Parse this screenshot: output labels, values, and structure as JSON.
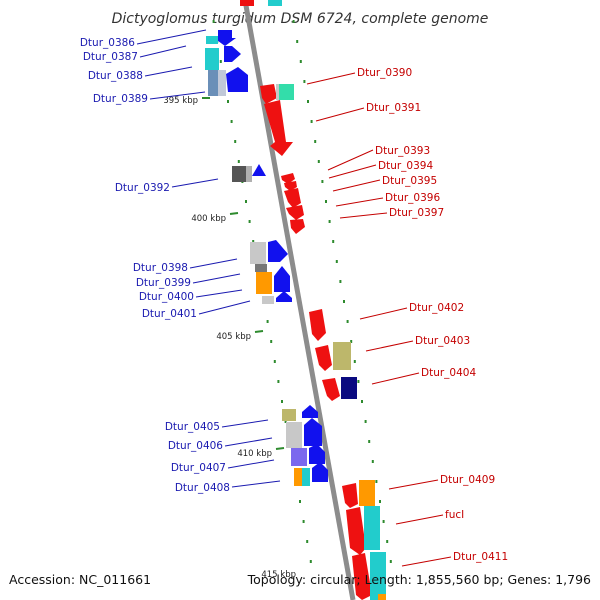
{
  "title": "Dictyoglomus turgidum DSM 6724, complete genome",
  "footer": {
    "accession": "Accession: NC_011661",
    "summary": "Topology: circular; Length: 1,855,560 bp; Genes: 1,796"
  },
  "colors": {
    "backbone": "#8c8c8c",
    "tick": "#2e8b2e",
    "left_label": "#1a1ab0",
    "right_label": "#c40000",
    "gene_blue": "#1111ee",
    "gene_red": "#ee1111",
    "cyan": "#22cccc",
    "orange": "#ff9900",
    "olive": "#bdb76b",
    "grey": "#b0b0b0",
    "dark_grey": "#555555",
    "navy": "#0a0a80",
    "purple": "#7b68ee",
    "mint": "#33ddaa",
    "steel": "#6a8fb8"
  },
  "scale_labels": [
    "395 kbp",
    "400 kbp",
    "405 kbp",
    "410 kbp",
    "415 kbp"
  ],
  "left_genes": [
    "Dtur_0386",
    "Dtur_0387",
    "Dtur_0388",
    "Dtur_0389",
    "Dtur_0392",
    "Dtur_0398",
    "Dtur_0399",
    "Dtur_0400",
    "Dtur_0401",
    "Dtur_0405",
    "Dtur_0406",
    "Dtur_0407",
    "Dtur_0408"
  ],
  "right_genes": [
    "Dtur_0390",
    "Dtur_0391",
    "Dtur_0393",
    "Dtur_0394",
    "Dtur_0395",
    "Dtur_0396",
    "Dtur_0397",
    "Dtur_0402",
    "Dtur_0403",
    "Dtur_0404",
    "Dtur_0409",
    "fucI",
    "Dtur_0411"
  ]
}
